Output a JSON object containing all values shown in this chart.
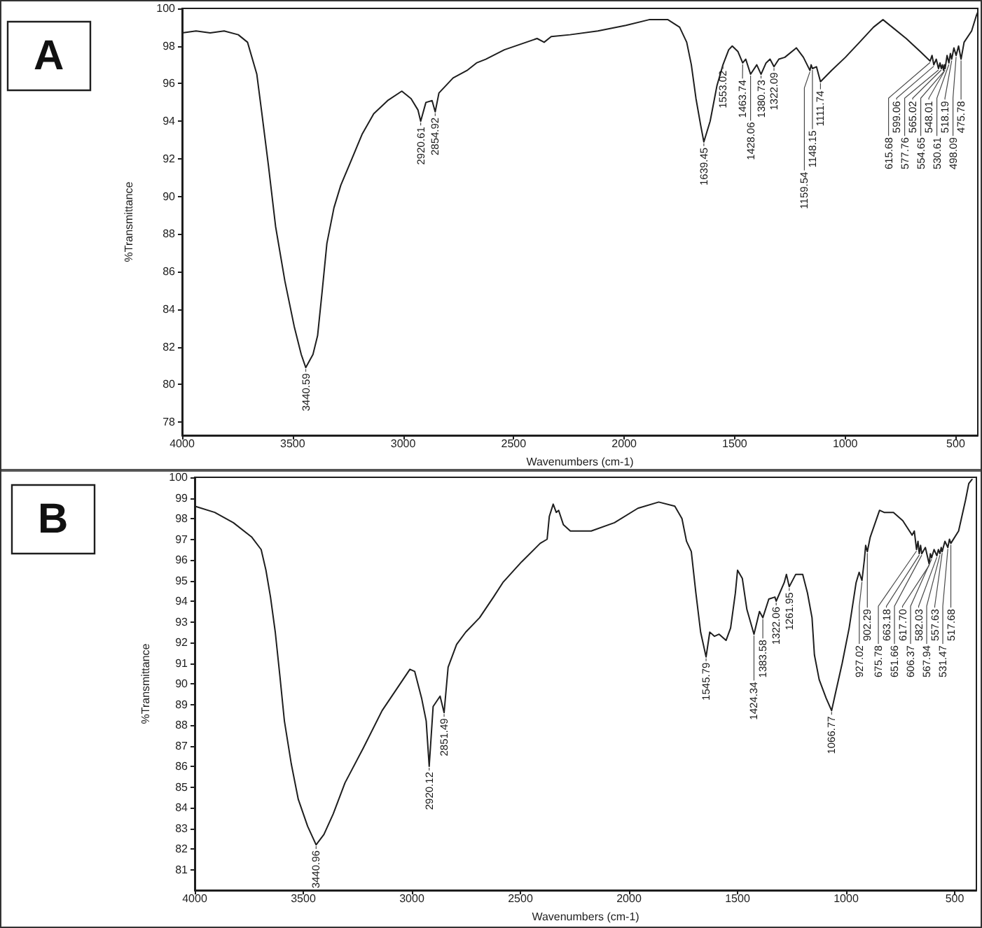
{
  "chart_data": [
    {
      "type": "line",
      "title": "A",
      "xlabel": "Wavenumbers (cm-1)",
      "ylabel": "%Transmittance",
      "xlim": [
        4000,
        400
      ],
      "xticks": [
        4000,
        3500,
        3000,
        2500,
        2000,
        1500,
        1000,
        500
      ],
      "ylim": [
        77.3,
        100
      ],
      "yticks": [
        78,
        80,
        82,
        84,
        86,
        88,
        90,
        92,
        94,
        96,
        98,
        100
      ],
      "color": "#1e1e1e",
      "x": [
        4000,
        3937,
        3873,
        3810,
        3746,
        3704,
        3662,
        3640,
        3609,
        3577,
        3535,
        3493,
        3461,
        3440.59,
        3408,
        3387,
        3366,
        3345,
        3313,
        3282,
        3239,
        3186,
        3133,
        3070,
        3006,
        2964,
        2933,
        2920.61,
        2897,
        2869,
        2854.92,
        2838,
        2774,
        2711,
        2668,
        2626,
        2542,
        2394,
        2362,
        2330,
        2245,
        2119,
        1992,
        1887,
        1802,
        1749,
        1717,
        1696,
        1675,
        1654,
        1639.45,
        1611,
        1580,
        1553.02,
        1527,
        1511,
        1485,
        1463.74,
        1450,
        1428.06,
        1400,
        1380.73,
        1358,
        1340,
        1322.09,
        1300,
        1273,
        1221,
        1189,
        1159.54,
        1154,
        1148.15,
        1130,
        1111.74,
        1062,
        999,
        935,
        872,
        829,
        787,
        724,
        660,
        615.68,
        607,
        599.06,
        588,
        577.76,
        571,
        565.02,
        560,
        554.65,
        551,
        548.01,
        539,
        530.61,
        524,
        518.19,
        508,
        498.09,
        487,
        475.78,
        462,
        428,
        407,
        400
      ],
      "values": [
        98.7,
        98.8,
        98.7,
        98.8,
        98.6,
        98.2,
        96.5,
        94.5,
        91.6,
        88.4,
        85.5,
        83.1,
        81.6,
        80.9,
        81.6,
        82.6,
        85.0,
        87.5,
        89.4,
        90.6,
        91.8,
        93.3,
        94.4,
        95.1,
        95.6,
        95.2,
        94.6,
        94.0,
        95.0,
        95.1,
        94.5,
        95.5,
        96.3,
        96.7,
        97.1,
        97.3,
        97.8,
        98.4,
        98.2,
        98.5,
        98.6,
        98.8,
        99.1,
        99.4,
        99.4,
        99.0,
        98.2,
        97.0,
        95.2,
        93.8,
        92.9,
        94.0,
        95.9,
        97.0,
        97.8,
        98.0,
        97.7,
        97.1,
        97.3,
        96.5,
        97.0,
        96.5,
        97.1,
        97.3,
        96.9,
        97.3,
        97.4,
        97.9,
        97.4,
        96.7,
        97.0,
        96.8,
        96.9,
        96.1,
        96.7,
        97.4,
        98.2,
        99.0,
        99.4,
        99.0,
        98.4,
        97.7,
        97.2,
        97.5,
        97.0,
        97.3,
        96.8,
        97.1,
        96.8,
        97.0,
        96.7,
        97.0,
        96.8,
        97.5,
        97.1,
        97.6,
        97.3,
        97.9,
        97.5,
        98.0,
        97.3,
        98.2,
        98.8,
        99.6,
        99.8
      ],
      "annotations": [
        {
          "text": "3440.59",
          "x": 3440.59,
          "y": 80.9
        },
        {
          "text": "2920.61",
          "x": 2920.61,
          "y": 94.0
        },
        {
          "text": "2854.92",
          "x": 2854.92,
          "y": 94.5
        },
        {
          "text": "1639.45",
          "x": 1639.45,
          "y": 92.9
        },
        {
          "text": "1553.02",
          "x": 1553.02,
          "y": 97.0
        },
        {
          "text": "1463.74",
          "x": 1463.74,
          "y": 97.1
        },
        {
          "text": "1428.06",
          "x": 1428.06,
          "y": 96.5
        },
        {
          "text": "1380.73",
          "x": 1380.73,
          "y": 96.5
        },
        {
          "text": "1322.09",
          "x": 1322.09,
          "y": 96.9
        },
        {
          "text": "1159.54",
          "x": 1159.54,
          "y": 96.7
        },
        {
          "text": "1148.15",
          "x": 1148.15,
          "y": 96.8
        },
        {
          "text": "1111.74",
          "x": 1111.74,
          "y": 96.1
        },
        {
          "text": "615.68",
          "x": 615.68,
          "y": 97.2
        },
        {
          "text": "599.06",
          "x": 599.06,
          "y": 97.0
        },
        {
          "text": "577.76",
          "x": 577.76,
          "y": 96.8
        },
        {
          "text": "565.02",
          "x": 565.02,
          "y": 96.8
        },
        {
          "text": "554.65",
          "x": 554.65,
          "y": 96.7
        },
        {
          "text": "548.01",
          "x": 548.01,
          "y": 96.8
        },
        {
          "text": "530.61",
          "x": 530.61,
          "y": 97.1
        },
        {
          "text": "518.19",
          "x": 518.19,
          "y": 97.3
        },
        {
          "text": "498.09",
          "x": 498.09,
          "y": 97.5
        },
        {
          "text": "475.78",
          "x": 475.78,
          "y": 97.3
        }
      ]
    },
    {
      "type": "line",
      "title": "B",
      "xlabel": "Wavenumbers (cm-1)",
      "ylabel": "%Transmittance",
      "xlim": [
        4000,
        400
      ],
      "xticks": [
        4000,
        3500,
        3000,
        2500,
        2000,
        1500,
        1000,
        500
      ],
      "ylim": [
        80,
        100
      ],
      "yticks": [
        81,
        82,
        83,
        84,
        85,
        86,
        87,
        88,
        89,
        90,
        91,
        92,
        93,
        94,
        95,
        96,
        97,
        98,
        99,
        100
      ],
      "color": "#1e1e1e",
      "x": [
        4000,
        3908,
        3822,
        3737,
        3694,
        3672,
        3651,
        3629,
        3608,
        3587,
        3555,
        3523,
        3480,
        3440.96,
        3405,
        3362,
        3308,
        3223,
        3137,
        3073,
        3009,
        2987,
        2955,
        2934,
        2920.12,
        2902,
        2870,
        2851.49,
        2833,
        2794,
        2752,
        2688,
        2624,
        2581,
        2495,
        2409,
        2377,
        2367,
        2349,
        2335,
        2324,
        2302,
        2270,
        2174,
        2067,
        1959,
        1863,
        1789,
        1756,
        1735,
        1713,
        1692,
        1670,
        1645,
        1628,
        1606,
        1585,
        1553,
        1532,
        1510,
        1500,
        1478,
        1457,
        1424.34,
        1399,
        1383.58,
        1356,
        1328,
        1322.06,
        1285,
        1275,
        1261.95,
        1232,
        1200,
        1178,
        1157,
        1146,
        1124,
        1092,
        1066.77,
        1050,
        1018,
        986,
        954,
        940,
        927.02,
        916,
        910,
        902.29,
        889,
        846,
        825,
        782,
        739,
        696,
        686,
        675.78,
        669,
        663.18,
        657,
        651.66,
        635,
        617.7,
        612,
        606.37,
        595,
        582.03,
        575,
        567.94,
        562,
        557.63,
        545,
        531.47,
        524,
        517.68,
        482,
        450,
        435,
        420
      ],
      "values": [
        98.6,
        98.3,
        97.8,
        97.1,
        96.5,
        95.5,
        94.2,
        92.5,
        90.4,
        88.2,
        86.1,
        84.4,
        83.1,
        82.2,
        82.7,
        83.7,
        85.2,
        86.9,
        88.7,
        89.7,
        90.7,
        90.6,
        89.3,
        88.2,
        86.0,
        88.9,
        89.4,
        88.6,
        90.8,
        91.9,
        92.5,
        93.2,
        94.2,
        94.9,
        95.9,
        96.8,
        97.0,
        98.1,
        98.7,
        98.3,
        98.4,
        97.7,
        97.4,
        97.4,
        97.8,
        98.5,
        98.8,
        98.6,
        98.0,
        96.9,
        96.4,
        94.4,
        92.5,
        91.3,
        92.5,
        92.3,
        92.4,
        92.1,
        92.7,
        94.4,
        95.5,
        95.1,
        93.6,
        92.4,
        93.5,
        93.2,
        94.1,
        94.2,
        94.0,
        94.9,
        95.3,
        94.7,
        95.3,
        95.3,
        94.4,
        93.2,
        91.4,
        90.2,
        89.3,
        88.7,
        89.5,
        91.0,
        92.7,
        94.9,
        95.4,
        95.0,
        96.0,
        96.7,
        96.4,
        97.1,
        98.4,
        98.3,
        98.3,
        97.9,
        97.2,
        97.4,
        96.5,
        96.9,
        96.3,
        96.7,
        96.3,
        96.6,
        95.8,
        96.3,
        96.1,
        96.5,
        96.2,
        96.5,
        96.3,
        96.6,
        96.4,
        96.9,
        96.6,
        97.0,
        96.8,
        97.4,
        98.9,
        99.7,
        99.9
      ],
      "annotations": [
        {
          "text": "3440.96",
          "x": 3440.96,
          "y": 82.2
        },
        {
          "text": "2920.12",
          "x": 2920.12,
          "y": 86.0
        },
        {
          "text": "2851.49",
          "x": 2851.49,
          "y": 88.6
        },
        {
          "text": "1545.79",
          "x": 1645,
          "y": 91.3
        },
        {
          "text": "1424.34",
          "x": 1424.34,
          "y": 92.4
        },
        {
          "text": "1383.58",
          "x": 1383.58,
          "y": 93.2
        },
        {
          "text": "1322.06",
          "x": 1322.06,
          "y": 94.0
        },
        {
          "text": "1261.95",
          "x": 1261.95,
          "y": 94.7
        },
        {
          "text": "1066.77",
          "x": 1066.77,
          "y": 88.7
        },
        {
          "text": "927.02",
          "x": 927.02,
          "y": 95.0
        },
        {
          "text": "902.29",
          "x": 902.29,
          "y": 96.4
        },
        {
          "text": "675.78",
          "x": 675.78,
          "y": 96.5
        },
        {
          "text": "663.18",
          "x": 663.18,
          "y": 96.3
        },
        {
          "text": "651.66",
          "x": 651.66,
          "y": 96.3
        },
        {
          "text": "617.70",
          "x": 617.7,
          "y": 95.8
        },
        {
          "text": "606.37",
          "x": 606.37,
          "y": 96.1
        },
        {
          "text": "582.03",
          "x": 582.03,
          "y": 96.2
        },
        {
          "text": "567.94",
          "x": 567.94,
          "y": 96.3
        },
        {
          "text": "557.63",
          "x": 557.63,
          "y": 96.4
        },
        {
          "text": "531.47",
          "x": 531.47,
          "y": 96.6
        },
        {
          "text": "517.68",
          "x": 517.68,
          "y": 96.8
        }
      ]
    }
  ]
}
